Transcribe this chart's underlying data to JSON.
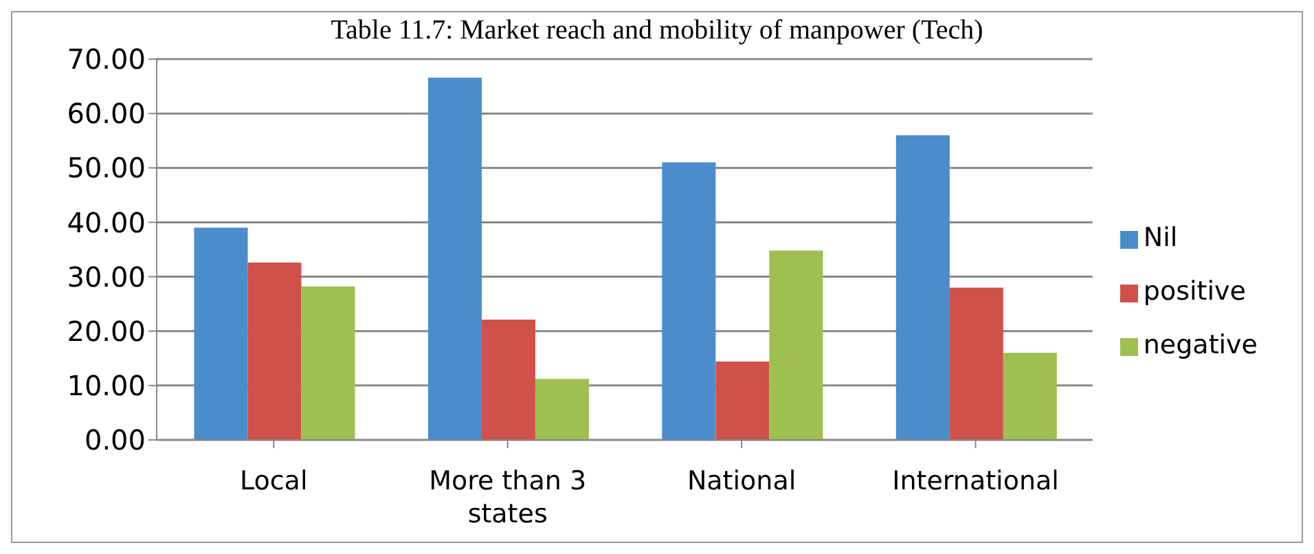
{
  "chart_data": {
    "type": "bar",
    "title": "Table 11.7: Market reach and mobility of manpower (Tech)",
    "categories": [
      "Local",
      "More than 3 states",
      "National",
      "International"
    ],
    "series": [
      {
        "name": "Nil",
        "color": "#4a8ccc",
        "values": [
          39.0,
          66.6,
          51.0,
          56.0
        ]
      },
      {
        "name": "positive",
        "color": "#d0504a",
        "values": [
          32.6,
          22.1,
          14.4,
          28.0
        ]
      },
      {
        "name": "negative",
        "color": "#9dc050",
        "values": [
          28.2,
          11.2,
          34.8,
          16.0
        ]
      }
    ],
    "ylim": [
      0,
      70
    ],
    "yticks": [
      {
        "value": 0,
        "label": "0.00"
      },
      {
        "value": 10,
        "label": "10.00"
      },
      {
        "value": 20,
        "label": "20.00"
      },
      {
        "value": 30,
        "label": "30.00"
      },
      {
        "value": 40,
        "label": "40.00"
      },
      {
        "value": 50,
        "label": "50.00"
      },
      {
        "value": 60,
        "label": "60.00"
      },
      {
        "value": 70,
        "label": "70.00"
      }
    ],
    "grid": "y",
    "legend": "right"
  }
}
